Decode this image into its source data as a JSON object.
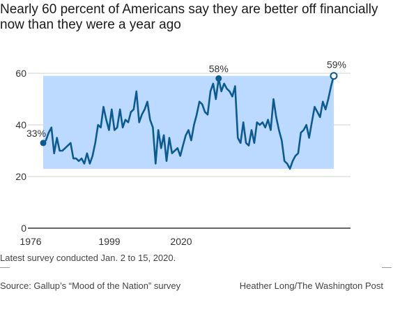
{
  "chart_data": {
    "type": "line",
    "title": "Nearly 60 percent of Americans say they are better off financially now than they were a year ago",
    "xlabel": "",
    "ylabel": "",
    "x_tick_labels": [
      "1976",
      "1999",
      "2020"
    ],
    "y_ticks": [
      0,
      20,
      40,
      60
    ],
    "ylim": [
      0,
      60
    ],
    "grid": true,
    "series": [
      {
        "values": [
          33,
          34,
          37,
          39,
          29,
          35,
          30,
          30,
          31,
          32,
          33,
          27,
          27,
          26,
          27,
          25,
          29,
          25,
          28,
          33,
          40,
          39,
          47,
          42,
          38,
          46,
          38,
          39,
          46,
          39,
          42,
          41,
          45,
          46,
          53,
          41,
          44,
          46,
          49,
          42,
          39,
          25,
          38,
          31,
          36,
          26,
          35,
          29,
          30,
          31,
          28,
          32,
          36,
          38,
          34,
          40,
          44,
          49,
          48,
          45,
          44,
          53,
          56,
          50,
          58,
          53,
          56,
          54,
          53,
          51,
          55,
          35,
          33,
          41,
          33,
          32,
          38,
          33,
          41,
          40,
          41,
          39,
          42,
          38,
          50,
          43,
          38,
          34,
          26,
          25,
          23,
          26,
          28,
          29,
          37,
          38,
          40,
          35,
          41,
          47,
          45,
          43,
          49,
          46,
          50,
          55,
          59
        ]
      }
    ],
    "callouts": [
      {
        "label": "33%",
        "value": 33,
        "index": 0
      },
      {
        "label": "58%",
        "value": 58,
        "index": 64
      },
      {
        "label": "59%",
        "value": 59,
        "index": 106
      }
    ],
    "range_band": {
      "min": 23,
      "max": 59
    },
    "colors": {
      "line": "#0c5a8f",
      "band": "#bcd9ff",
      "grid": "#d0d0d0",
      "axis": "#333333"
    }
  },
  "footer": {
    "note": "Latest survey conducted Jan. 2 to 15, 2020.",
    "source": "Source: Gallup’s “Mood of the Nation” survey",
    "credit": "Heather Long/The Washington Post"
  }
}
